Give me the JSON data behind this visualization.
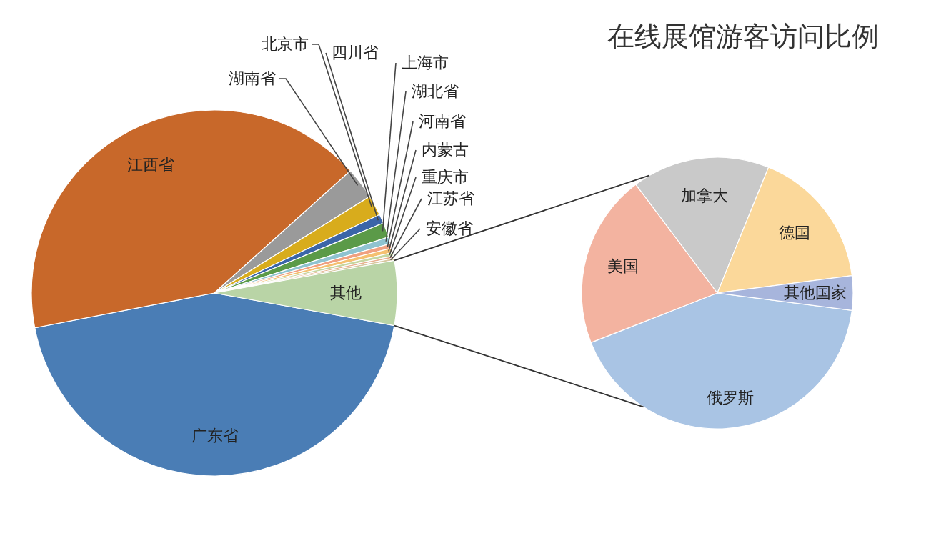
{
  "chart_data": [
    {
      "type": "pie",
      "categories": [
        "广东省",
        "江西省",
        "湖南省",
        "北京市",
        "四川省",
        "上海市",
        "湖北省",
        "河南省",
        "内蒙古",
        "重庆市",
        "江苏省",
        "安徽省",
        "其他"
      ],
      "values": [
        44.1,
        41.4,
        2.8,
        1.8,
        0.8,
        1.3,
        0.6,
        0.4,
        0.4,
        0.3,
        0.2,
        0.2,
        5.7
      ],
      "colors": [
        "#4a7db5",
        "#c8682a",
        "#9a9a9a",
        "#d8ac1c",
        "#3b65a8",
        "#5b9a48",
        "#8fc3d0",
        "#f0a080",
        "#f5c070",
        "#c5d6a0",
        "#e8b090",
        "#d9c7a0",
        "#b9d4a6"
      ]
    },
    {
      "type": "pie",
      "title": "在线展馆游客访问比例",
      "categories": [
        "俄罗斯",
        "美国",
        "加拿大",
        "德国",
        "其他国家"
      ],
      "values": [
        42.0,
        20.7,
        16.4,
        16.8,
        4.1
      ],
      "colors": [
        "#a9c4e4",
        "#f3b3a0",
        "#c9c9c9",
        "#fbd89a",
        "#a7b5dc"
      ]
    }
  ]
}
